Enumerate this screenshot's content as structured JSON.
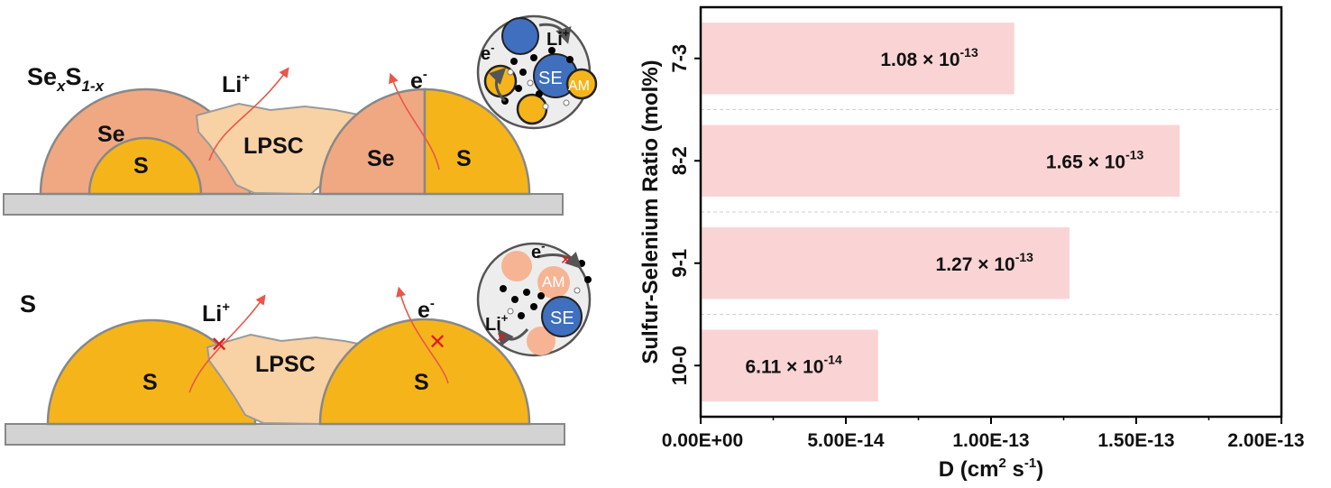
{
  "schematic": {
    "top": {
      "formula_base1": "Se",
      "formula_sub1": "x",
      "formula_base2": "S",
      "formula_sub2": "1-x",
      "left_shell": "Se",
      "left_core": "S",
      "electrolyte": "LPSC",
      "right_left": "Se",
      "right_right": "S",
      "ion_base": "Li",
      "ion_sup": "+",
      "electron_base": "e",
      "electron_sup": "-",
      "inset_e_base": "e",
      "inset_e_sup": "-",
      "inset_li_base": "Li",
      "inset_li_sup": "+",
      "inset_se": "SE",
      "inset_am": "AM"
    },
    "bottom": {
      "formula": "S",
      "left_particle": "S",
      "electrolyte": "LPSC",
      "right_particle": "S",
      "ion_base": "Li",
      "ion_sup": "+",
      "electron_base": "e",
      "electron_sup": "-",
      "inset_e_base": "e",
      "inset_e_sup": "-",
      "inset_li_base": "Li",
      "inset_li_sup": "+",
      "inset_se": "SE",
      "inset_am": "AM"
    }
  },
  "chart_data": {
    "type": "bar",
    "orientation": "horizontal",
    "categories": [
      "7-3",
      "8-2",
      "9-1",
      "10-0"
    ],
    "values": [
      1.08e-13,
      1.65e-13,
      1.27e-13,
      6.11e-14
    ],
    "labels": [
      {
        "base": "1.08 × 10",
        "exp": "-13"
      },
      {
        "base": "1.65 × 10",
        "exp": "-13"
      },
      {
        "base": "1.27 × 10",
        "exp": "-13"
      },
      {
        "base": "6.11 × 10",
        "exp": "-14"
      }
    ],
    "xlim": [
      0,
      2e-13
    ],
    "xticks": [
      "0.00E+00",
      "5.00E-14",
      "1.00E-13",
      "1.50E-13",
      "2.00E-13"
    ],
    "xlabel_base": "D (cm",
    "xlabel_sup1": "2",
    "xlabel_mid": " s",
    "xlabel_sup2": "-1",
    "xlabel_end": ")",
    "ylabel": "Sulfur-Selenium Ratio (mol%)",
    "bar_color": "#fad4d4",
    "grid": "horizontal dashed"
  }
}
